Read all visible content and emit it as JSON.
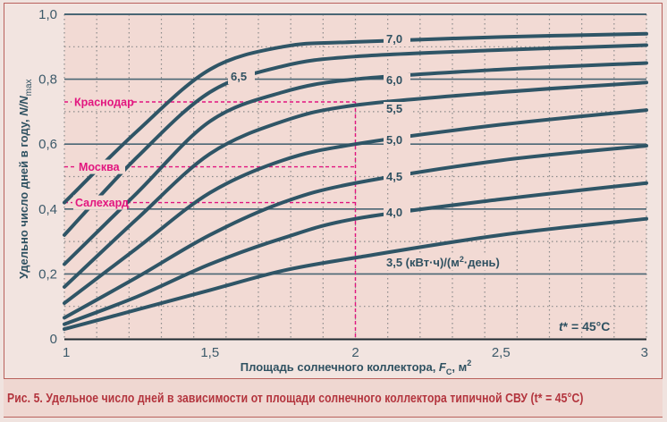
{
  "caption": "Рис. 5. Удельное число дней в зависимости от площади солнечного коллектора типичной СВУ (t* = 45°С)",
  "colors": {
    "curve": "#2f5566",
    "grid_major": "#4a6674",
    "grid_minor": "#8a8a8a",
    "reference": "#e2157f",
    "plot_bg": "#f2dad4",
    "frame": "#b9615c",
    "caption_text": "#b3343d"
  },
  "chart_data": {
    "type": "line",
    "title": "",
    "xlabel": "Площадь солнечного коллектора, F_c, м²",
    "xlabel_parts": {
      "pre": "Площадь солнечного коллектора, ",
      "var": "F",
      "sub": "C",
      "post": ", м",
      "sup": "2"
    },
    "ylabel": "Удельно число дней в году, N/N_max",
    "ylabel_parts": {
      "pre": "Удельно число дней в году, ",
      "var": "N/N",
      "sub": "max"
    },
    "xlim": [
      1,
      3
    ],
    "ylim": [
      0,
      1.0
    ],
    "x_ticks": [
      "1",
      "1,5",
      "2",
      "2,5",
      "3"
    ],
    "y_ticks": [
      "0",
      "0,2",
      "0,4",
      "0,6",
      "0,8",
      "1,0"
    ],
    "grid": true,
    "annotation": "t* = 45°C",
    "x": [
      1.0,
      1.25,
      1.5,
      1.75,
      2.0,
      2.5,
      3.0
    ],
    "series": [
      {
        "name": "7,0",
        "values": [
          0.42,
          0.64,
          0.83,
          0.9,
          0.915,
          0.93,
          0.94
        ]
      },
      {
        "name": "6,5",
        "values": [
          0.32,
          0.56,
          0.76,
          0.84,
          0.87,
          0.89,
          0.905
        ]
      },
      {
        "name": "6,0",
        "values": [
          0.23,
          0.45,
          0.67,
          0.76,
          0.8,
          0.83,
          0.85
        ]
      },
      {
        "name": "5,5",
        "values": [
          0.16,
          0.37,
          0.57,
          0.67,
          0.72,
          0.76,
          0.79
        ]
      },
      {
        "name": "5,0",
        "values": [
          0.11,
          0.28,
          0.45,
          0.55,
          0.6,
          0.66,
          0.705
        ]
      },
      {
        "name": "4,5",
        "values": [
          0.065,
          0.19,
          0.32,
          0.42,
          0.48,
          0.55,
          0.595
        ]
      },
      {
        "name": "4,0",
        "values": [
          0.045,
          0.13,
          0.23,
          0.31,
          0.37,
          0.43,
          0.48
        ]
      },
      {
        "name": "3,5 (кВт·ч)/(м²·день)",
        "values": [
          0.03,
          0.09,
          0.15,
          0.21,
          0.25,
          0.32,
          0.37
        ]
      }
    ],
    "reference_lines": [
      {
        "name": "Краснодар",
        "y": 0.73,
        "x_end": 2.0
      },
      {
        "name": "Москва",
        "y": 0.53,
        "x_end": 2.0
      },
      {
        "name": "Салехард",
        "y": 0.42,
        "x_end": 2.0
      }
    ]
  }
}
